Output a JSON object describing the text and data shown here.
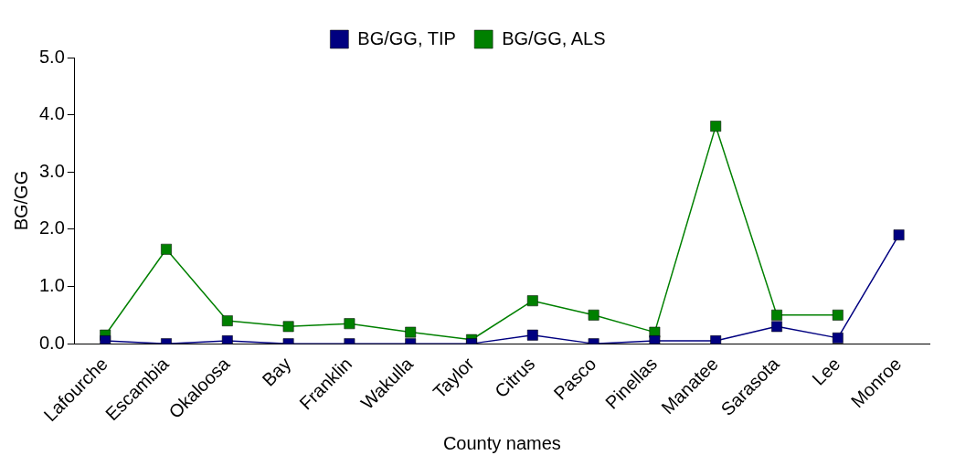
{
  "chart_data": {
    "type": "line",
    "xlabel": "County names",
    "ylabel": "BG/GG",
    "categories": [
      "Lafourche",
      "Escambia",
      "Okaloosa",
      "Bay",
      "Franklin",
      "Wakulla",
      "Taylor",
      "Citrus",
      "Pasco",
      "Pinellas",
      "Manatee",
      "Sarasota",
      "Lee",
      "Monroe"
    ],
    "series": [
      {
        "name": "BG/GG, TIP",
        "color": "#000080",
        "values": [
          0.05,
          0.0,
          0.05,
          0.0,
          0.0,
          0.0,
          0.0,
          0.15,
          0.0,
          0.05,
          0.05,
          0.3,
          0.1,
          1.9
        ]
      },
      {
        "name": "BG/GG, ALS",
        "color": "#008000",
        "values": [
          0.15,
          1.65,
          0.4,
          0.3,
          0.35,
          0.2,
          0.07,
          0.75,
          0.5,
          0.2,
          3.8,
          0.5,
          0.5,
          null
        ]
      }
    ],
    "ylim": [
      0,
      5
    ],
    "yticks": [
      {
        "value": 0,
        "label": "0.0"
      },
      {
        "value": 1,
        "label": "1.0"
      },
      {
        "value": 2,
        "label": "2.0"
      },
      {
        "value": 3,
        "label": "3.0"
      },
      {
        "value": 4,
        "label": "4.0"
      },
      {
        "value": 5,
        "label": "5.0"
      }
    ],
    "grid": false,
    "legend": "top",
    "marker": "square",
    "line_style": "solid"
  }
}
